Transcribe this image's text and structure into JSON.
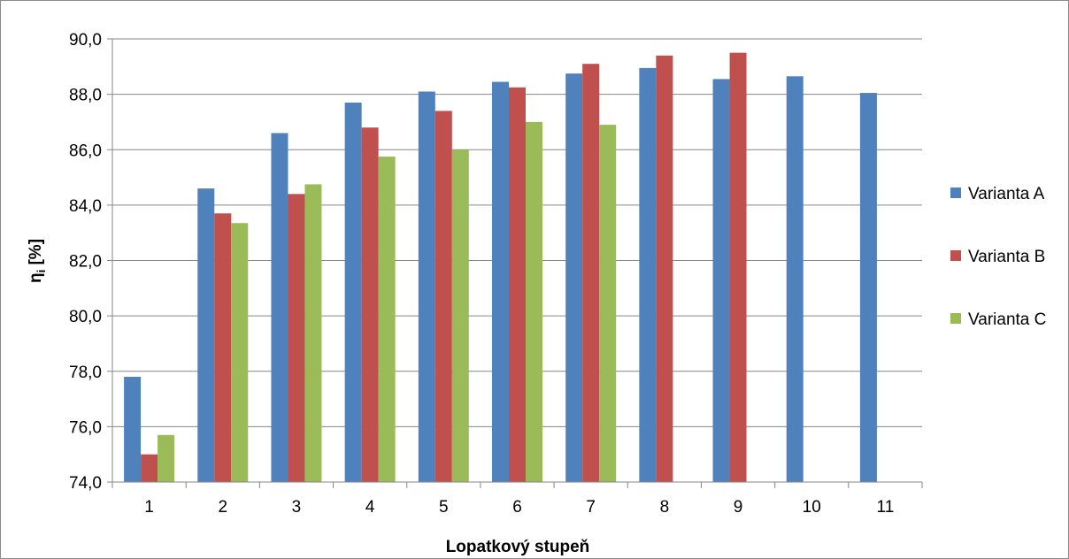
{
  "chart_data": {
    "type": "bar",
    "title": "",
    "xlabel": "Lopatkový stupeň",
    "ylabel": "η",
    "ylabel_subscript": "i",
    "ylabel_unit": " [%]",
    "ylim": [
      74.0,
      90.0
    ],
    "ytick_step": 2.0,
    "ytick_labels": [
      "74,0",
      "76,0",
      "78,0",
      "80,0",
      "82,0",
      "84,0",
      "86,0",
      "88,0",
      "90,0"
    ],
    "grid": true,
    "legend_position": "right",
    "categories": [
      "1",
      "2",
      "3",
      "4",
      "5",
      "6",
      "7",
      "8",
      "9",
      "10",
      "11"
    ],
    "series": [
      {
        "name": "Varianta A",
        "color": "#4f81bd",
        "values": [
          77.8,
          84.6,
          86.6,
          87.7,
          88.1,
          88.45,
          88.75,
          88.95,
          88.55,
          88.65,
          88.05
        ]
      },
      {
        "name": "Varianta B",
        "color": "#c0504d",
        "values": [
          75.0,
          83.7,
          84.4,
          86.8,
          87.4,
          88.25,
          89.1,
          89.4,
          89.5,
          null,
          null
        ]
      },
      {
        "name": "Varianta C",
        "color": "#9bbb59",
        "values": [
          75.7,
          83.35,
          84.75,
          85.75,
          86.0,
          87.0,
          86.9,
          null,
          null,
          null,
          null
        ]
      }
    ]
  }
}
